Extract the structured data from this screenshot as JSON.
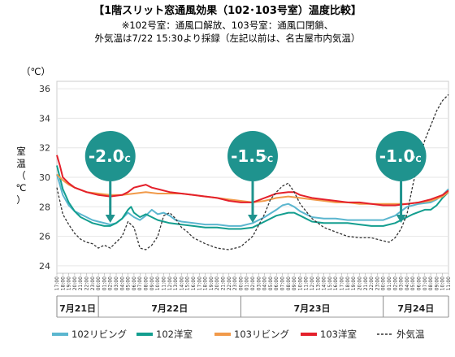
{
  "chart_data": {
    "type": "line",
    "title": "【1階スリット窓通風効果（102･103号室）温度比較】",
    "subtitle_lines": [
      "※102号室：通風口解放、103号室：通風口閉鎖、",
      "外気温は7/22 15:30より採録（左記以前は、名古屋市内気温）"
    ],
    "ylabel": "室温（℃）",
    "yunit": "（℃）",
    "ylim": [
      23.5,
      36.5
    ],
    "yticks": [
      24,
      26,
      28,
      30,
      32,
      34,
      36
    ],
    "x_start_hour": 17,
    "x_end_hour": 83,
    "x_tick_labels": [
      "17:00",
      "18:00",
      "19:00",
      "20:00",
      "21:00",
      "22:00",
      "23:00",
      "00:00",
      "01:00",
      "02:00",
      "03:00",
      "04:00",
      "05:00",
      "06:00",
      "07:00",
      "08:00",
      "09:00",
      "10:00",
      "11:00",
      "12:00",
      "13:00",
      "14:00",
      "15:00",
      "16:00",
      "17:00",
      "18:00",
      "19:00",
      "20:00",
      "21:00",
      "22:00",
      "23:00",
      "00:00",
      "01:00",
      "02:00",
      "03:00",
      "04:00",
      "05:00",
      "06:00",
      "07:00",
      "08:00",
      "09:00",
      "10:00",
      "11:00",
      "12:00",
      "13:00",
      "14:00",
      "15:00",
      "16:00",
      "17:00",
      "18:00",
      "19:00",
      "20:00",
      "21:00",
      "22:00",
      "23:00",
      "00:00",
      "01:00",
      "02:00",
      "03:00",
      "04:00",
      "05:00",
      "06:00",
      "07:00",
      "08:00",
      "09:00",
      "10:00",
      "11:00"
    ],
    "days": [
      {
        "label": "7月21日",
        "from": 17,
        "to": 24
      },
      {
        "label": "7月22日",
        "from": 24,
        "to": 48
      },
      {
        "label": "7月23日",
        "from": 48,
        "to": 72
      },
      {
        "label": "7月24日",
        "from": 72,
        "to": 83
      }
    ],
    "series": [
      {
        "name": "102リビング",
        "color": "#5bb6cf",
        "dash": "",
        "points": [
          [
            17,
            30.2
          ],
          [
            18,
            28.8
          ],
          [
            19,
            28.1
          ],
          [
            20,
            27.7
          ],
          [
            21,
            27.5
          ],
          [
            22,
            27.3
          ],
          [
            23,
            27.1
          ],
          [
            24,
            27.0
          ],
          [
            26,
            26.8
          ],
          [
            27,
            26.9
          ],
          [
            28,
            27.2
          ],
          [
            29,
            27.6
          ],
          [
            30,
            27.3
          ],
          [
            31,
            27.1
          ],
          [
            32,
            27.4
          ],
          [
            33,
            27.8
          ],
          [
            34,
            27.5
          ],
          [
            35,
            27.6
          ],
          [
            36,
            27.4
          ],
          [
            37,
            27.1
          ],
          [
            38,
            27.0
          ],
          [
            40,
            26.9
          ],
          [
            42,
            26.8
          ],
          [
            44,
            26.8
          ],
          [
            46,
            26.7
          ],
          [
            48,
            26.7
          ],
          [
            50,
            26.9
          ],
          [
            52,
            27.3
          ],
          [
            54,
            27.8
          ],
          [
            55,
            28.1
          ],
          [
            56,
            28.2
          ],
          [
            57,
            28.0
          ],
          [
            58,
            27.7
          ],
          [
            60,
            27.3
          ],
          [
            62,
            27.2
          ],
          [
            64,
            27.2
          ],
          [
            66,
            27.1
          ],
          [
            68,
            27.1
          ],
          [
            70,
            27.1
          ],
          [
            72,
            27.1
          ],
          [
            74,
            27.4
          ],
          [
            76,
            28.0
          ],
          [
            78,
            28.2
          ],
          [
            80,
            28.3
          ],
          [
            81,
            28.5
          ],
          [
            82,
            28.8
          ],
          [
            83,
            29.2
          ]
        ]
      },
      {
        "name": "102洋室",
        "color": "#139e8f",
        "dash": "",
        "points": [
          [
            17,
            30.8
          ],
          [
            18,
            29.2
          ],
          [
            19,
            28.3
          ],
          [
            20,
            27.7
          ],
          [
            21,
            27.3
          ],
          [
            22,
            27.1
          ],
          [
            23,
            26.9
          ],
          [
            24,
            26.8
          ],
          [
            25,
            26.7
          ],
          [
            26,
            26.7
          ],
          [
            27,
            26.9
          ],
          [
            28,
            27.2
          ],
          [
            29,
            27.8
          ],
          [
            29.5,
            28.0
          ],
          [
            30,
            27.6
          ],
          [
            31,
            27.3
          ],
          [
            32,
            27.5
          ],
          [
            33,
            27.3
          ],
          [
            34,
            27.1
          ],
          [
            35,
            27.0
          ],
          [
            36,
            26.9
          ],
          [
            38,
            26.8
          ],
          [
            40,
            26.7
          ],
          [
            42,
            26.6
          ],
          [
            44,
            26.6
          ],
          [
            46,
            26.5
          ],
          [
            48,
            26.5
          ],
          [
            50,
            26.6
          ],
          [
            52,
            27.0
          ],
          [
            54,
            27.4
          ],
          [
            56,
            27.6
          ],
          [
            57,
            27.6
          ],
          [
            58,
            27.4
          ],
          [
            60,
            27.0
          ],
          [
            62,
            26.9
          ],
          [
            64,
            26.9
          ],
          [
            66,
            26.9
          ],
          [
            68,
            26.8
          ],
          [
            70,
            26.7
          ],
          [
            72,
            26.7
          ],
          [
            74,
            26.9
          ],
          [
            76,
            27.3
          ],
          [
            77,
            27.5
          ],
          [
            79,
            27.8
          ],
          [
            80,
            27.8
          ],
          [
            81,
            28.1
          ],
          [
            82,
            28.6
          ],
          [
            83,
            29.0
          ]
        ]
      },
      {
        "name": "103リビング",
        "color": "#f19a4a",
        "dash": "",
        "points": [
          [
            17,
            30.2
          ],
          [
            18,
            29.8
          ],
          [
            19,
            29.5
          ],
          [
            20,
            29.3
          ],
          [
            22,
            29.0
          ],
          [
            24,
            28.9
          ],
          [
            26,
            28.8
          ],
          [
            28,
            28.8
          ],
          [
            30,
            28.9
          ],
          [
            32,
            29.0
          ],
          [
            34,
            28.9
          ],
          [
            36,
            28.9
          ],
          [
            38,
            28.9
          ],
          [
            40,
            28.8
          ],
          [
            42,
            28.7
          ],
          [
            44,
            28.6
          ],
          [
            46,
            28.5
          ],
          [
            48,
            28.4
          ],
          [
            50,
            28.3
          ],
          [
            52,
            28.4
          ],
          [
            54,
            28.6
          ],
          [
            56,
            28.7
          ],
          [
            58,
            28.6
          ],
          [
            60,
            28.5
          ],
          [
            62,
            28.4
          ],
          [
            64,
            28.3
          ],
          [
            66,
            28.3
          ],
          [
            68,
            28.2
          ],
          [
            70,
            28.2
          ],
          [
            72,
            28.2
          ],
          [
            74,
            28.2
          ],
          [
            76,
            28.2
          ],
          [
            78,
            28.3
          ],
          [
            80,
            28.4
          ],
          [
            82,
            28.7
          ],
          [
            83,
            29.0
          ]
        ]
      },
      {
        "name": "103洋室",
        "color": "#e4202b",
        "dash": "",
        "points": [
          [
            17,
            31.5
          ],
          [
            17.5,
            30.8
          ],
          [
            18,
            30.0
          ],
          [
            19,
            29.6
          ],
          [
            20,
            29.3
          ],
          [
            22,
            29.0
          ],
          [
            24,
            28.8
          ],
          [
            26,
            28.7
          ],
          [
            28,
            28.8
          ],
          [
            29,
            29.0
          ],
          [
            30,
            29.3
          ],
          [
            31,
            29.4
          ],
          [
            32,
            29.5
          ],
          [
            33,
            29.3
          ],
          [
            34,
            29.2
          ],
          [
            36,
            29.0
          ],
          [
            38,
            28.9
          ],
          [
            40,
            28.8
          ],
          [
            42,
            28.7
          ],
          [
            44,
            28.6
          ],
          [
            46,
            28.4
          ],
          [
            48,
            28.3
          ],
          [
            50,
            28.3
          ],
          [
            52,
            28.6
          ],
          [
            54,
            28.9
          ],
          [
            56,
            29.0
          ],
          [
            57,
            29.0
          ],
          [
            58,
            28.8
          ],
          [
            60,
            28.6
          ],
          [
            62,
            28.5
          ],
          [
            64,
            28.4
          ],
          [
            66,
            28.3
          ],
          [
            68,
            28.3
          ],
          [
            70,
            28.2
          ],
          [
            72,
            28.1
          ],
          [
            74,
            28.1
          ],
          [
            76,
            28.2
          ],
          [
            78,
            28.3
          ],
          [
            80,
            28.5
          ],
          [
            82,
            28.8
          ],
          [
            83,
            29.1
          ]
        ]
      },
      {
        "name": "外気温",
        "color": "#333333",
        "dash": "3,2",
        "points": [
          [
            17,
            29.3
          ],
          [
            18,
            27.5
          ],
          [
            19,
            26.8
          ],
          [
            20,
            26.2
          ],
          [
            21,
            25.8
          ],
          [
            22,
            25.6
          ],
          [
            23,
            25.5
          ],
          [
            24,
            25.2
          ],
          [
            25,
            25.4
          ],
          [
            26,
            25.2
          ],
          [
            27,
            25.6
          ],
          [
            28,
            26.0
          ],
          [
            29,
            27.0
          ],
          [
            30,
            26.6
          ],
          [
            31,
            25.2
          ],
          [
            32,
            25.1
          ],
          [
            33,
            25.4
          ],
          [
            34,
            26.0
          ],
          [
            35,
            27.4
          ],
          [
            36,
            27.6
          ],
          [
            37,
            27.2
          ],
          [
            38,
            26.6
          ],
          [
            39,
            26.3
          ],
          [
            40,
            25.9
          ],
          [
            42,
            25.5
          ],
          [
            44,
            25.2
          ],
          [
            46,
            25.1
          ],
          [
            48,
            25.3
          ],
          [
            50,
            26.0
          ],
          [
            52,
            27.5
          ],
          [
            53,
            28.5
          ],
          [
            54,
            29.0
          ],
          [
            55,
            29.4
          ],
          [
            56,
            29.6
          ],
          [
            57,
            29.0
          ],
          [
            58,
            28.2
          ],
          [
            60,
            27.2
          ],
          [
            62,
            26.6
          ],
          [
            64,
            26.3
          ],
          [
            66,
            26.0
          ],
          [
            68,
            25.9
          ],
          [
            70,
            25.9
          ],
          [
            72,
            25.7
          ],
          [
            73,
            25.6
          ],
          [
            74,
            25.9
          ],
          [
            75,
            26.5
          ],
          [
            76,
            27.5
          ],
          [
            77,
            29.5
          ],
          [
            78,
            31.2
          ],
          [
            79,
            32.5
          ],
          [
            80,
            33.5
          ],
          [
            81,
            34.5
          ],
          [
            82,
            35.2
          ],
          [
            83,
            35.6
          ]
        ]
      }
    ],
    "annotations": [
      {
        "text": "-2.0",
        "unit": "℃",
        "x": 26
      },
      {
        "text": "-1.5",
        "unit": "℃",
        "x": 50
      },
      {
        "text": "-1.0",
        "unit": "℃",
        "x": 75
      }
    ],
    "bubble_color": "#1f938e"
  }
}
